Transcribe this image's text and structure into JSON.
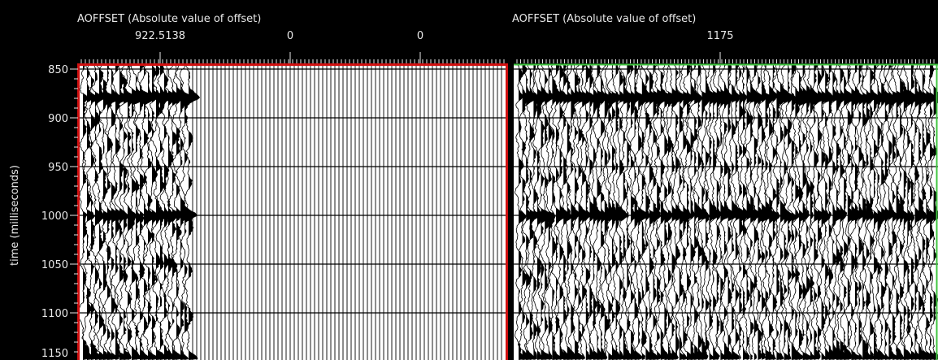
{
  "left_panel": {
    "axis_title": "AOFFSET (Absolute value of offset)",
    "top_labels": [
      "922.5138",
      "0",
      "0"
    ]
  },
  "right_panel": {
    "axis_title": "AOFFSET (Absolute value of offset)",
    "top_labels": [
      "1175"
    ]
  },
  "y_axis": {
    "label": "time (milliseconds)",
    "ticks": [
      850,
      900,
      950,
      1000,
      1050,
      1100,
      1150
    ]
  }
}
